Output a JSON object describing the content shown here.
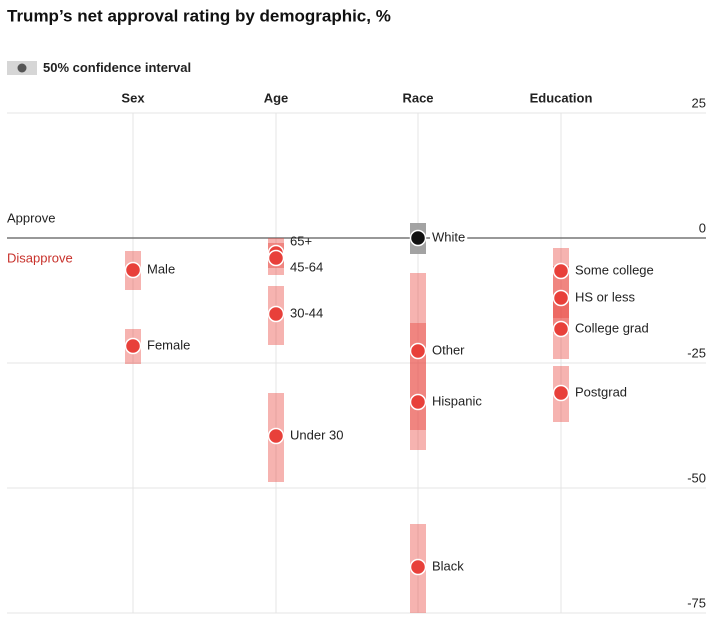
{
  "chart_data": {
    "type": "dot",
    "title": "Trump’s net approval rating by demographic, %",
    "legend": "50% confidence interval",
    "approve_label": "Approve",
    "disapprove_label": "Disapprove",
    "ylim": [
      -75,
      25
    ],
    "yticks": [
      25,
      0,
      -25,
      -50,
      -75
    ],
    "groups": [
      {
        "name": "Sex",
        "points": [
          {
            "label": "Male",
            "value": -6.4,
            "ci": [
              -2.6,
              -10.4
            ],
            "color": "#e8403a"
          },
          {
            "label": "Female",
            "value": -21.6,
            "ci": [
              -18.2,
              -25.2
            ],
            "color": "#e8403a"
          }
        ]
      },
      {
        "name": "Age",
        "points": [
          {
            "label": "65+",
            "value": -3,
            "ci": [
              0,
              -6
            ],
            "color": "#e8403a"
          },
          {
            "label": "45-64",
            "value": -4,
            "ci": [
              -1,
              -7.4
            ],
            "color": "#e8403a"
          },
          {
            "label": "30-44",
            "value": -15.2,
            "ci": [
              -9.6,
              -21.4
            ],
            "color": "#e8403a"
          },
          {
            "label": "Under 30",
            "value": -39.6,
            "ci": [
              -31,
              -48.8
            ],
            "color": "#e8403a"
          }
        ]
      },
      {
        "name": "Race",
        "points": [
          {
            "label": "White",
            "value": 0,
            "ci": [
              3,
              -3.2
            ],
            "color": "#111111"
          },
          {
            "label": "Other",
            "value": -22.6,
            "ci": [
              -7,
              -42.4
            ],
            "color": "#e8403a"
          },
          {
            "label": "Hispanic",
            "value": -32.8,
            "ci": [
              -17,
              -38.4
            ],
            "color": "#e8403a"
          },
          {
            "label": "Black",
            "value": -65.8,
            "ci": [
              -57.2,
              -75
            ],
            "color": "#e8403a"
          }
        ]
      },
      {
        "name": "Education",
        "points": [
          {
            "label": "Some college",
            "value": -6.6,
            "ci": [
              -2,
              -16
            ],
            "color": "#e8403a"
          },
          {
            "label": "HS or less",
            "value": -12,
            "ci": [
              -5.6,
              -19
            ],
            "color": "#e8403a"
          },
          {
            "label": "College grad",
            "value": -18.2,
            "ci": [
              -12,
              -24.2
            ],
            "color": "#e8403a"
          },
          {
            "label": "Postgrad",
            "value": -31,
            "ci": [
              -25.6,
              -36.8
            ],
            "color": "#e8403a"
          }
        ]
      }
    ]
  }
}
